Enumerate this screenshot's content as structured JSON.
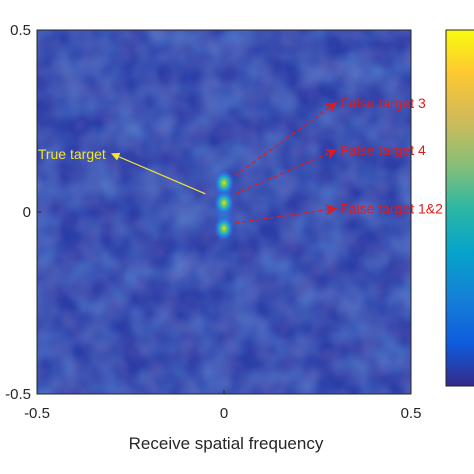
{
  "chart_data": {
    "type": "heatmap",
    "title": "",
    "xlabel": "Receive spatial frequency",
    "ylabel": "",
    "xlim": [
      -0.5,
      0.5
    ],
    "ylim": [
      -0.5,
      0.5
    ],
    "xticks": [
      "-0.5",
      "0",
      "0.5"
    ],
    "yticks": [
      "-0.5",
      "0",
      "0.5"
    ],
    "colormap": "parula",
    "background_level": 0.12,
    "peaks": [
      {
        "x": 0.0,
        "y": 0.08,
        "level": 0.85
      },
      {
        "x": 0.0,
        "y": 0.025,
        "level": 0.8
      },
      {
        "x": 0.0,
        "y": -0.045,
        "level": 0.8
      }
    ],
    "colorbar": {
      "visible": true,
      "position": "right"
    },
    "annotations": [
      {
        "text": "True target",
        "color": "#f5e62a",
        "from": [
          -0.05,
          0.05
        ],
        "to": [
          -0.3,
          0.16
        ]
      },
      {
        "text": "False target 3",
        "color": "#e11a1a",
        "from": [
          0.03,
          0.1
        ],
        "to": [
          0.3,
          0.3
        ]
      },
      {
        "text": "False target 4",
        "color": "#e11a1a",
        "from": [
          0.03,
          0.05
        ],
        "to": [
          0.3,
          0.17
        ]
      },
      {
        "text": "False target 1&2",
        "color": "#e11a1a",
        "from": [
          0.03,
          -0.03
        ],
        "to": [
          0.3,
          0.01
        ]
      }
    ]
  }
}
